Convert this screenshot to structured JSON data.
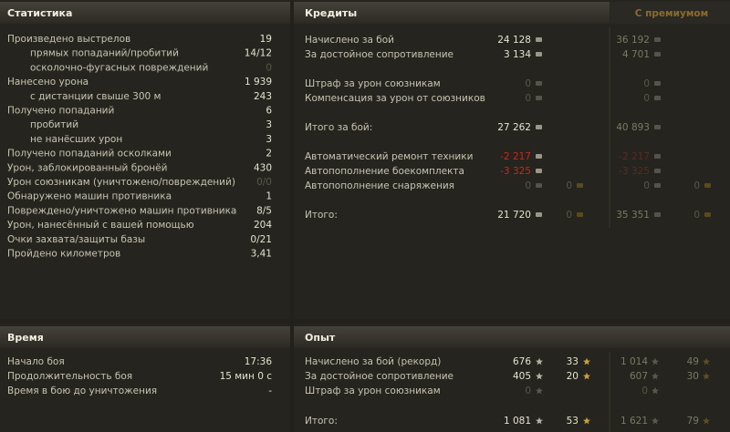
{
  "statistics": {
    "title": "Статистика",
    "rows": [
      {
        "label": "Произведено выстрелов",
        "value": "19",
        "sub": [
          {
            "label": "прямых попаданий/пробитий",
            "value": "14/12"
          },
          {
            "label": "осколочно-фугасных повреждений",
            "value": "0"
          }
        ]
      },
      {
        "label": "Нанесено урона",
        "value": "1 939",
        "sub": [
          {
            "label": "с дистанции свыше 300 м",
            "value": "243"
          }
        ]
      },
      {
        "label": "Получено попаданий",
        "value": "6",
        "sub": [
          {
            "label": "пробитий",
            "value": "3"
          },
          {
            "label": "не нанёсших урон",
            "value": "3"
          }
        ]
      },
      {
        "label": "Получено попаданий осколками",
        "value": "2"
      },
      {
        "label": "Урон, заблокированный бронёй",
        "value": "430"
      },
      {
        "label": "Урон союзникам (уничтожено/повреждений)",
        "value": "0/0"
      },
      {
        "label": "Обнаружено машин противника",
        "value": "1"
      },
      {
        "label": "Повреждено/уничтожено машин противника",
        "value": "8/5"
      },
      {
        "label": "Урон, нанесённый с вашей помощью",
        "value": "204"
      },
      {
        "label": "Очки захвата/защиты базы",
        "value": "0/21"
      },
      {
        "label": "Пройдено километров",
        "value": "3,41"
      }
    ]
  },
  "credits": {
    "title": "Кредиты",
    "premium_title": "С премиумом",
    "groups": [
      [
        {
          "label": "Начислено за бой",
          "value": "24 128",
          "premium": "36 192"
        },
        {
          "label": "За достойное сопротивление",
          "value": "3 134",
          "premium": "4 701"
        }
      ],
      [
        {
          "label": "Штраф за урон союзникам",
          "value": "0",
          "premium": "0"
        },
        {
          "label": "Компенсация за урон от союзников",
          "value": "0",
          "premium": "0"
        }
      ],
      [
        {
          "label": "Итого за бой:",
          "value": "27 262",
          "premium": "40 893"
        }
      ],
      [
        {
          "label": "Автоматический ремонт техники",
          "value": "-2 217",
          "premium": "-2 217"
        },
        {
          "label": "Автопополнение боекомплекта",
          "value": "-3 325",
          "premium": "-3 325"
        },
        {
          "label": "Автопополнение снаряжения",
          "value": "0",
          "gold": "0",
          "premium": "0",
          "premium_gold": "0"
        }
      ],
      [
        {
          "label": "Итого:",
          "value": "21 720",
          "gold": "0",
          "premium": "35 351",
          "premium_gold": "0"
        }
      ]
    ]
  },
  "time": {
    "title": "Время",
    "rows": [
      {
        "label": "Начало боя",
        "value": "17:36"
      },
      {
        "label": "Продолжительность боя",
        "value": "15 мин 0 с"
      },
      {
        "label": "Время в бою до уничтожения",
        "value": "-"
      }
    ]
  },
  "experience": {
    "title": "Опыт",
    "groups": [
      [
        {
          "label": "Начислено за бой (рекорд)",
          "value": "676",
          "free": "33",
          "premium": "1 014",
          "premium_free": "49"
        },
        {
          "label": "За достойное сопротивление",
          "value": "405",
          "free": "20",
          "premium": "607",
          "premium_free": "30"
        },
        {
          "label": "Штраф за урон союзникам",
          "value": "0",
          "premium": "0"
        }
      ],
      [
        {
          "label": "Итого:",
          "value": "1 081",
          "free": "53",
          "premium": "1 621",
          "premium_free": "79"
        }
      ]
    ]
  }
}
